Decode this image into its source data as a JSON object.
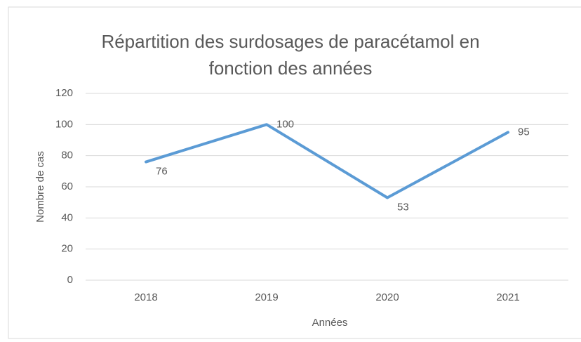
{
  "chart_data": {
    "type": "line",
    "title": "Répartition des surdosages de paracétamol en fonction des années",
    "categories": [
      "2018",
      "2019",
      "2020",
      "2021"
    ],
    "series": [
      {
        "name": "Nombre de cas",
        "color": "#5b9bd5",
        "values": [
          76,
          100,
          53,
          95
        ]
      }
    ],
    "xlabel": "Années",
    "ylabel": "Nombre de cas",
    "ylim": [
      0,
      120
    ],
    "yticks": [
      0,
      20,
      40,
      60,
      80,
      100,
      120
    ],
    "grid": true,
    "data_labels": true
  }
}
